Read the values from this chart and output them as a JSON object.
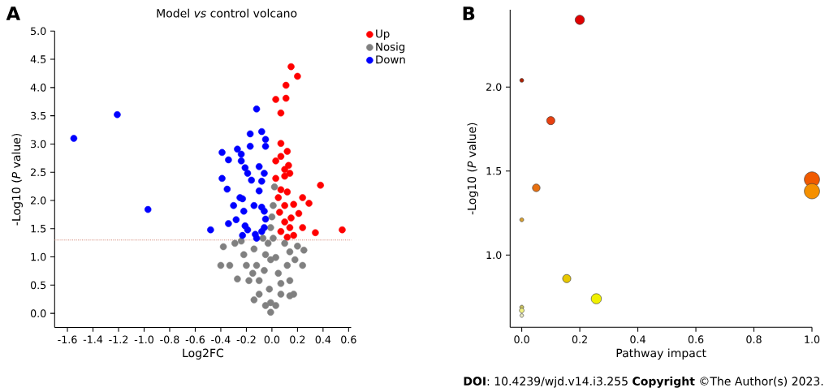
{
  "chart_data": [
    {
      "type": "scatter",
      "title": "Model *vs* control volcano",
      "xlabel": "Log2FC",
      "ylabel": "-Log10 (*P* value)",
      "annotations": [
        "A"
      ],
      "series": [
        {
          "name": "Up",
          "color": "#ff0000",
          "x": [
            0.15,
            0.2,
            0.11,
            0.11,
            0.03,
            0.07,
            0.07,
            0.12,
            0.07,
            0.03,
            0.13,
            0.1,
            0.14,
            0.1,
            0.03,
            0.38,
            0.07,
            0.12,
            0.05,
            0.24,
            0.29,
            0.17,
            0.1,
            0.21,
            0.06,
            0.15,
            0.1,
            0.24,
            0.14,
            0.34,
            0.55,
            0.07,
            0.17,
            0.12
          ],
          "values": [
            4.37,
            4.2,
            4.04,
            3.81,
            3.79,
            3.55,
            3.01,
            2.87,
            2.78,
            2.7,
            2.62,
            2.55,
            2.48,
            2.43,
            2.39,
            2.27,
            2.19,
            2.15,
            2.05,
            2.05,
            1.95,
            1.93,
            1.91,
            1.77,
            1.79,
            1.69,
            1.62,
            1.52,
            1.52,
            1.43,
            1.48,
            1.45,
            1.38,
            1.35
          ]
        },
        {
          "name": "Nosig",
          "color": "#808080",
          "x": [
            -0.38,
            -0.4,
            -0.33,
            -0.27,
            -0.29,
            0.25,
            0.24,
            0.2,
            0.17,
            0.14,
            -0.14,
            -0.01,
            -0.05,
            0.03,
            -0.1,
            0.07,
            -0.18,
            0.14,
            -0.2,
            0.12,
            -0.14,
            0.14,
            -0.05,
            0.03,
            0.01,
            0.02,
            0.0,
            0.01,
            -0.01,
            -0.06,
            0.05,
            -0.1,
            0.07,
            -0.02,
            -0.22,
            0.18,
            -0.24,
            0.1,
            -0.03,
            -0.07,
            -0.12,
            -0.01,
            -0.15,
            -0.01
          ],
          "values": [
            1.18,
            0.85,
            0.85,
            0.61,
            1.24,
            1.12,
            0.85,
            1.19,
            0.34,
            0.31,
            0.24,
            0.02,
            0.14,
            0.14,
            0.34,
            0.34,
            0.58,
            0.58,
            0.85,
            0.85,
            1.14,
            1.09,
            1.04,
            0.99,
            1.33,
            2.24,
            1.71,
            1.91,
            1.52,
            0.76,
            0.71,
            0.58,
            0.53,
            0.43,
            1.04,
            0.95,
            1.28,
            1.24,
            1.24,
            1.33,
            0.85,
            0.95,
            0.71,
            0.19
          ]
        },
        {
          "name": "Down",
          "color": "#0000ff",
          "x": [
            -1.55,
            -1.21,
            -0.97,
            -0.48,
            -0.12,
            -0.17,
            -0.08,
            -0.05,
            -0.05,
            -0.17,
            -0.39,
            -0.34,
            -0.27,
            -0.24,
            -0.24,
            -0.21,
            -0.19,
            -0.16,
            -0.1,
            -0.06,
            -0.08,
            -0.39,
            -0.35,
            -0.1,
            -0.25,
            -0.23,
            -0.3,
            -0.22,
            -0.14,
            -0.08,
            -0.06,
            -0.34,
            -0.28,
            -0.21,
            -0.19,
            -0.23,
            -0.13,
            -0.08,
            -0.05,
            -0.06,
            -0.12
          ],
          "values": [
            3.1,
            3.52,
            1.84,
            1.48,
            3.62,
            3.18,
            3.22,
            3.08,
            2.96,
            2.96,
            2.85,
            2.72,
            2.91,
            2.82,
            2.7,
            2.58,
            2.48,
            2.36,
            2.6,
            2.48,
            2.34,
            2.39,
            2.2,
            2.17,
            2.05,
            2.03,
            1.91,
            1.81,
            1.91,
            1.88,
            1.81,
            1.59,
            1.66,
            1.55,
            1.48,
            1.38,
            1.4,
            1.45,
            1.67,
            1.52,
            1.33
          ]
        }
      ],
      "xlim": [
        -1.7,
        0.62
      ],
      "ylim": [
        -0.25,
        5.0
      ],
      "xticks": [
        {
          "value": -1.6,
          "label": "-1.6"
        },
        {
          "value": -1.4,
          "label": "-1.4"
        },
        {
          "value": -1.2,
          "label": "-1.2"
        },
        {
          "value": -1.0,
          "label": "-1.0"
        },
        {
          "value": -0.8,
          "label": "-0.8"
        },
        {
          "value": -0.6,
          "label": "-0.6"
        },
        {
          "value": -0.4,
          "label": "-0.4"
        },
        {
          "value": -0.2,
          "label": "-0.2"
        },
        {
          "value": 0,
          "label": "0.0"
        },
        {
          "value": 0.2,
          "label": "0.2"
        },
        {
          "value": 0.4,
          "label": "0.4"
        },
        {
          "value": 0.6,
          "label": "0.6"
        }
      ],
      "yticks": [
        {
          "value": 0,
          "label": "0.0"
        },
        {
          "value": 0.5,
          "label": "0.5"
        },
        {
          "value": 1.0,
          "label": "1.0"
        },
        {
          "value": 1.5,
          "label": "1.5"
        },
        {
          "value": 2.0,
          "label": "2.0"
        },
        {
          "value": 2.5,
          "label": "2.5"
        },
        {
          "value": 3.0,
          "label": "3.0"
        },
        {
          "value": 3.5,
          "label": "3.5"
        },
        {
          "value": 4.0,
          "label": "4.0"
        },
        {
          "value": 4.5,
          "label": "4.5"
        },
        {
          "value": 5.0,
          "label": "5.0"
        }
      ],
      "legend": "top right",
      "ref_lines": [
        {
          "axis": "y",
          "value": 1.3,
          "color": "#d08070",
          "line_style": "dotted"
        }
      ]
    },
    {
      "type": "bubble",
      "xlabel": "Pathway impact",
      "ylabel": "-Log10 (*P* value)",
      "annotations": [
        "B",
        "**DOI**: 10.4239/wjd.v14.i3.255 **Copyright** ©The Author(s) 2023."
      ],
      "x": [
        0.2,
        0.0,
        0.1,
        0.05,
        0.0,
        0.155,
        0.257,
        0.0,
        0.0,
        0.0,
        1.0,
        1.0
      ],
      "values": [
        2.4,
        2.04,
        1.8,
        1.4,
        1.21,
        0.86,
        0.74,
        0.69,
        0.67,
        0.64,
        1.45,
        1.38
      ],
      "sizes": [
        0.39,
        0.08,
        0.31,
        0.27,
        0.08,
        0.31,
        0.46,
        0.08,
        0.11,
        0.07,
        1,
        1
      ],
      "colors": [
        "#e00000",
        "#b02000",
        "#e84010",
        "#e87010",
        "#d8a030",
        "#e8c800",
        "#f0f000",
        "#c8c060",
        "#f0f080",
        "#e8e8c0",
        "#f05a00",
        "#f59000"
      ],
      "xlim": [
        -0.04,
        1.0
      ],
      "ylim": [
        0.57,
        2.46
      ],
      "xticks": [
        {
          "value": 0,
          "label": "0.0"
        },
        {
          "value": 0.2,
          "label": "0.2"
        },
        {
          "value": 0.4,
          "label": "0.4"
        },
        {
          "value": 0.6,
          "label": "0.6"
        },
        {
          "value": 0.8,
          "label": "0.8"
        },
        {
          "value": 1.0,
          "label": "1.0"
        }
      ],
      "yticks": [
        {
          "value": 1.0,
          "label": "1.0"
        },
        {
          "value": 1.5,
          "label": "1.5"
        },
        {
          "value": 2.0,
          "label": "2.0"
        }
      ]
    }
  ]
}
